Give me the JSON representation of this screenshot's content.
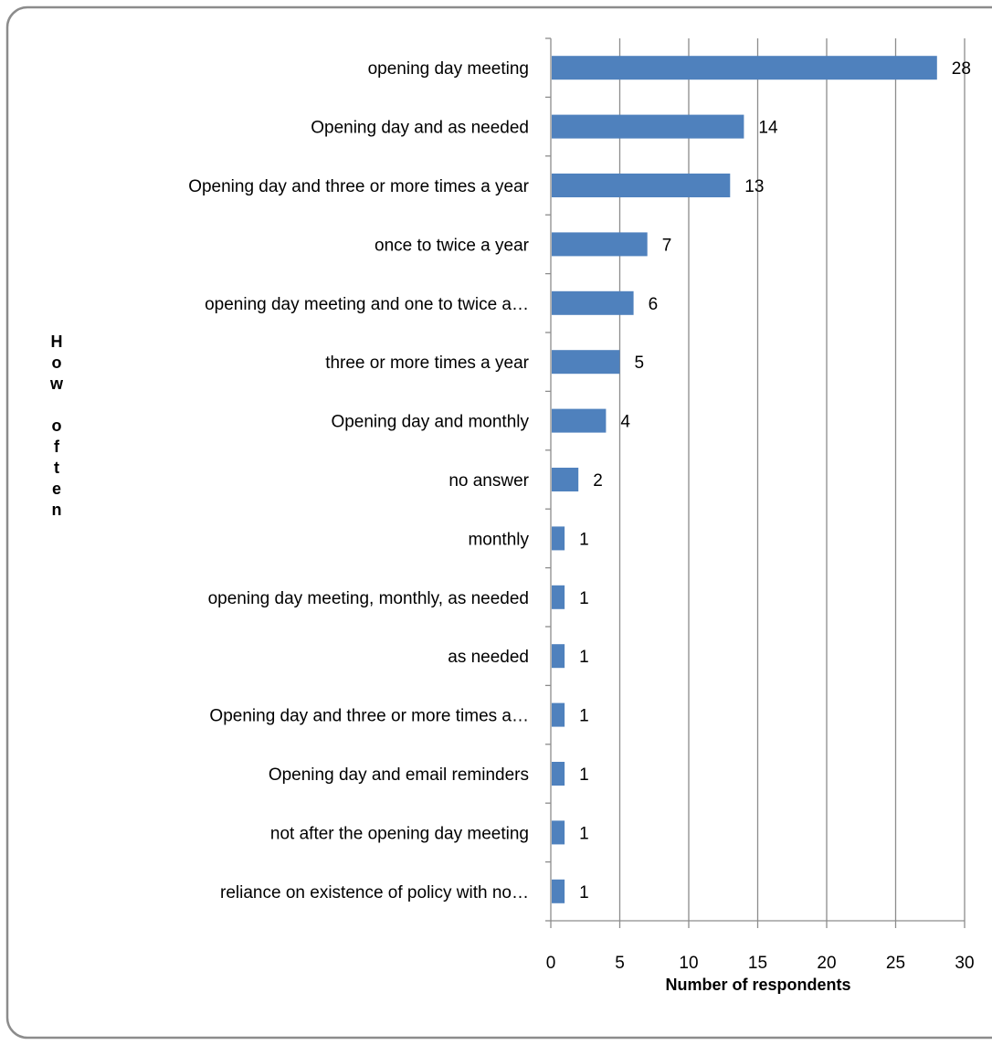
{
  "chart_data": {
    "type": "bar",
    "orientation": "horizontal",
    "categories": [
      "opening day meeting",
      "Opening day and as needed",
      "Opening day and three or more times a year",
      "once to twice a year",
      "opening day meeting and one to twice a…",
      "three or more times a year",
      "Opening day and monthly",
      "no answer",
      "monthly",
      "opening day meeting, monthly, as needed",
      "as needed",
      "Opening day and three or more times a…",
      "Opening day and email reminders",
      "not after the opening day meeting",
      "reliance on existence of policy with no…"
    ],
    "values": [
      28,
      14,
      13,
      7,
      6,
      5,
      4,
      2,
      1,
      1,
      1,
      1,
      1,
      1,
      1
    ],
    "xlabel": "Number of respondents",
    "ylabel": "How often",
    "xlim": [
      0,
      30
    ],
    "x_ticks": [
      0,
      5,
      10,
      15,
      20,
      25,
      30
    ],
    "grid": true,
    "legend": "none",
    "bar_color": "#4f81bd",
    "grid_color": "#8c8c8c"
  }
}
